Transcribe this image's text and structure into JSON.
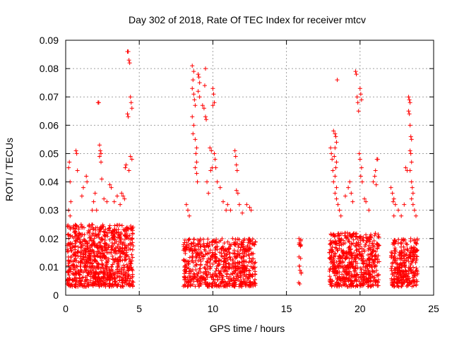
{
  "chart_data": {
    "type": "scatter",
    "title": "Day 302 of 2018, Rate Of TEC Index for receiver mtcv",
    "xlabel": "GPS time / hours",
    "ylabel": "ROTI / TECUs",
    "xlim": [
      0,
      25
    ],
    "ylim": [
      0,
      0.09
    ],
    "xticks": [
      0,
      5,
      10,
      15,
      20,
      25
    ],
    "xtick_labels": [
      "0",
      "5",
      "10",
      "15",
      "20",
      "25"
    ],
    "yticks": [
      0,
      0.01,
      0.02,
      0.03,
      0.04,
      0.05,
      0.06,
      0.07,
      0.08,
      0.09
    ],
    "ytick_labels": [
      "0",
      "0.01",
      "0.02",
      "0.03",
      "0.04",
      "0.05",
      "0.06",
      "0.07",
      "0.08",
      "0.09"
    ],
    "grid": true,
    "legend": "none",
    "marker": "plus",
    "color": "#ff0000",
    "clusters": [
      {
        "x_start": 0.1,
        "x_end": 4.6,
        "y_low": 0.003,
        "y_high": 0.025,
        "count": 900
      },
      {
        "x_start": 8.0,
        "x_end": 12.9,
        "y_low": 0.003,
        "y_high": 0.02,
        "count": 700
      },
      {
        "x_start": 15.8,
        "x_end": 16.0,
        "y_low": 0.004,
        "y_high": 0.02,
        "count": 15
      },
      {
        "x_start": 17.9,
        "x_end": 21.3,
        "y_low": 0.003,
        "y_high": 0.022,
        "count": 600
      },
      {
        "x_start": 22.1,
        "x_end": 23.9,
        "y_low": 0.003,
        "y_high": 0.02,
        "count": 300
      }
    ],
    "points": [
      [
        0.2,
        0.045
      ],
      [
        0.25,
        0.047
      ],
      [
        0.3,
        0.04
      ],
      [
        0.35,
        0.033
      ],
      [
        0.2,
        0.03
      ],
      [
        0.3,
        0.028
      ],
      [
        0.7,
        0.051
      ],
      [
        0.75,
        0.05
      ],
      [
        0.8,
        0.044
      ],
      [
        1.1,
        0.035
      ],
      [
        1.2,
        0.038
      ],
      [
        1.4,
        0.042
      ],
      [
        1.45,
        0.04
      ],
      [
        1.8,
        0.03
      ],
      [
        1.9,
        0.033
      ],
      [
        2.0,
        0.036
      ],
      [
        2.1,
        0.03
      ],
      [
        2.2,
        0.068
      ],
      [
        2.25,
        0.068
      ],
      [
        2.3,
        0.053
      ],
      [
        2.35,
        0.051
      ],
      [
        2.4,
        0.05
      ],
      [
        2.3,
        0.049
      ],
      [
        2.4,
        0.047
      ],
      [
        2.45,
        0.041
      ],
      [
        2.6,
        0.034
      ],
      [
        2.8,
        0.033
      ],
      [
        3.0,
        0.039
      ],
      [
        3.1,
        0.038
      ],
      [
        3.3,
        0.033
      ],
      [
        3.5,
        0.035
      ],
      [
        3.7,
        0.032
      ],
      [
        3.8,
        0.036
      ],
      [
        3.9,
        0.035
      ],
      [
        4.0,
        0.034
      ],
      [
        4.05,
        0.045
      ],
      [
        4.1,
        0.046
      ],
      [
        4.2,
        0.086
      ],
      [
        4.25,
        0.086
      ],
      [
        4.3,
        0.083
      ],
      [
        4.35,
        0.082
      ],
      [
        4.2,
        0.064
      ],
      [
        4.25,
        0.063
      ],
      [
        4.4,
        0.07
      ],
      [
        4.45,
        0.068
      ],
      [
        4.5,
        0.066
      ],
      [
        4.4,
        0.049
      ],
      [
        4.5,
        0.048
      ],
      [
        4.3,
        0.044
      ],
      [
        8.2,
        0.032
      ],
      [
        8.3,
        0.03
      ],
      [
        8.4,
        0.028
      ],
      [
        8.6,
        0.081
      ],
      [
        8.7,
        0.079
      ],
      [
        8.65,
        0.076
      ],
      [
        8.6,
        0.073
      ],
      [
        8.7,
        0.071
      ],
      [
        8.75,
        0.069
      ],
      [
        8.8,
        0.067
      ],
      [
        8.6,
        0.063
      ],
      [
        8.7,
        0.06
      ],
      [
        8.65,
        0.057
      ],
      [
        8.8,
        0.055
      ],
      [
        8.9,
        0.052
      ],
      [
        8.85,
        0.05
      ],
      [
        8.9,
        0.047
      ],
      [
        8.8,
        0.045
      ],
      [
        8.9,
        0.043
      ],
      [
        8.95,
        0.04
      ],
      [
        9.0,
        0.078
      ],
      [
        9.05,
        0.077
      ],
      [
        9.1,
        0.075
      ],
      [
        9.0,
        0.072
      ],
      [
        9.1,
        0.07
      ],
      [
        9.3,
        0.067
      ],
      [
        9.4,
        0.066
      ],
      [
        9.5,
        0.08
      ],
      [
        9.45,
        0.074
      ],
      [
        9.5,
        0.063
      ],
      [
        9.55,
        0.062
      ],
      [
        9.6,
        0.04
      ],
      [
        9.7,
        0.036
      ],
      [
        9.8,
        0.052
      ],
      [
        9.9,
        0.051
      ],
      [
        9.95,
        0.045
      ],
      [
        9.85,
        0.044
      ],
      [
        10.0,
        0.073
      ],
      [
        10.05,
        0.071
      ],
      [
        10.1,
        0.068
      ],
      [
        10.0,
        0.067
      ],
      [
        10.1,
        0.05
      ],
      [
        10.15,
        0.048
      ],
      [
        10.2,
        0.045
      ],
      [
        10.3,
        0.04
      ],
      [
        10.5,
        0.038
      ],
      [
        10.7,
        0.033
      ],
      [
        10.9,
        0.03
      ],
      [
        11.0,
        0.032
      ],
      [
        11.2,
        0.03
      ],
      [
        11.5,
        0.051
      ],
      [
        11.55,
        0.049
      ],
      [
        11.6,
        0.046
      ],
      [
        11.65,
        0.044
      ],
      [
        11.6,
        0.037
      ],
      [
        11.7,
        0.036
      ],
      [
        11.8,
        0.032
      ],
      [
        12.0,
        0.029
      ],
      [
        12.3,
        0.032
      ],
      [
        12.5,
        0.031
      ],
      [
        12.6,
        0.03
      ],
      [
        15.85,
        0.02
      ],
      [
        15.9,
        0.018
      ],
      [
        15.9,
        0.004
      ],
      [
        18.0,
        0.052
      ],
      [
        18.05,
        0.05
      ],
      [
        18.1,
        0.048
      ],
      [
        18.15,
        0.044
      ],
      [
        18.2,
        0.04
      ],
      [
        18.2,
        0.058
      ],
      [
        18.3,
        0.057
      ],
      [
        18.35,
        0.056
      ],
      [
        18.4,
        0.054
      ],
      [
        18.3,
        0.052
      ],
      [
        18.25,
        0.049
      ],
      [
        18.4,
        0.047
      ],
      [
        18.35,
        0.045
      ],
      [
        18.3,
        0.042
      ],
      [
        18.4,
        0.038
      ],
      [
        18.3,
        0.036
      ],
      [
        18.4,
        0.034
      ],
      [
        18.5,
        0.032
      ],
      [
        18.6,
        0.03
      ],
      [
        18.45,
        0.076
      ],
      [
        18.7,
        0.028
      ],
      [
        19.0,
        0.035
      ],
      [
        19.2,
        0.038
      ],
      [
        19.3,
        0.04
      ],
      [
        19.4,
        0.036
      ],
      [
        19.5,
        0.033
      ],
      [
        19.7,
        0.079
      ],
      [
        19.75,
        0.078
      ],
      [
        19.8,
        0.07
      ],
      [
        19.85,
        0.068
      ],
      [
        19.9,
        0.065
      ],
      [
        20.0,
        0.073
      ],
      [
        20.05,
        0.071
      ],
      [
        20.1,
        0.069
      ],
      [
        19.95,
        0.05
      ],
      [
        20.0,
        0.048
      ],
      [
        20.1,
        0.045
      ],
      [
        20.05,
        0.042
      ],
      [
        20.15,
        0.04
      ],
      [
        20.3,
        0.034
      ],
      [
        20.4,
        0.033
      ],
      [
        20.6,
        0.03
      ],
      [
        20.9,
        0.04
      ],
      [
        21.0,
        0.042
      ],
      [
        21.05,
        0.044
      ],
      [
        21.1,
        0.039
      ],
      [
        21.15,
        0.048
      ],
      [
        21.2,
        0.048
      ],
      [
        22.1,
        0.038
      ],
      [
        22.2,
        0.036
      ],
      [
        22.3,
        0.034
      ],
      [
        22.25,
        0.033
      ],
      [
        22.4,
        0.032
      ],
      [
        22.3,
        0.028
      ],
      [
        22.6,
        0.03
      ],
      [
        22.8,
        0.028
      ],
      [
        23.0,
        0.032
      ],
      [
        23.1,
        0.045
      ],
      [
        23.2,
        0.044
      ],
      [
        23.3,
        0.07
      ],
      [
        23.35,
        0.069
      ],
      [
        23.4,
        0.068
      ],
      [
        23.3,
        0.065
      ],
      [
        23.35,
        0.064
      ],
      [
        23.4,
        0.06
      ],
      [
        23.45,
        0.056
      ],
      [
        23.5,
        0.055
      ],
      [
        23.4,
        0.051
      ],
      [
        23.45,
        0.05
      ],
      [
        23.5,
        0.047
      ],
      [
        23.4,
        0.044
      ],
      [
        23.5,
        0.04
      ],
      [
        23.55,
        0.038
      ],
      [
        23.6,
        0.036
      ],
      [
        23.5,
        0.034
      ],
      [
        23.6,
        0.032
      ],
      [
        23.7,
        0.03
      ],
      [
        23.8,
        0.028
      ]
    ]
  }
}
